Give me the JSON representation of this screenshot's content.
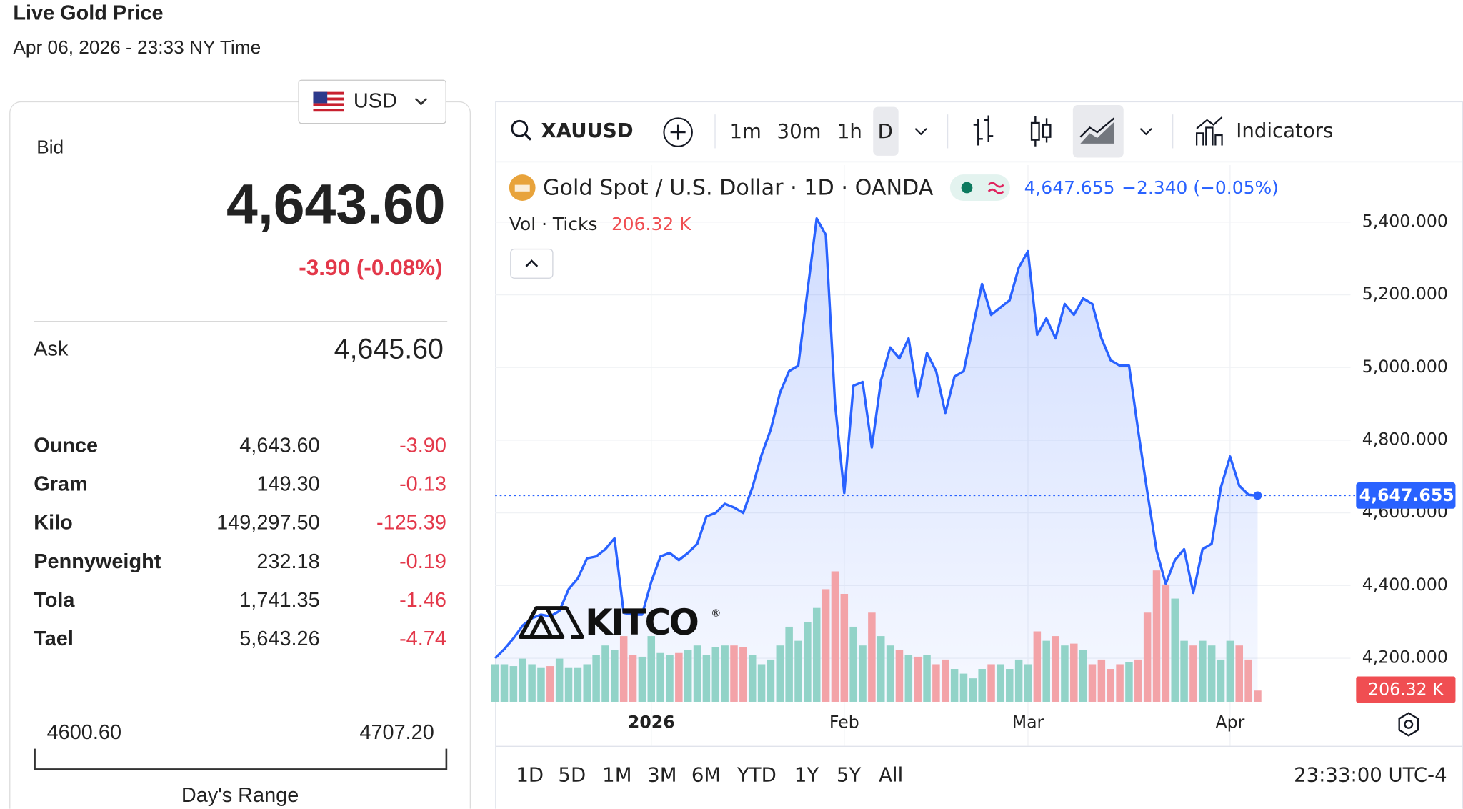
{
  "header": {
    "title": "Live Gold Price",
    "timestamp": "Apr 06, 2026 - 23:33 NY Time"
  },
  "quote": {
    "currency": "USD",
    "bid_label": "Bid",
    "bid": "4,643.60",
    "change": "-3.90 (-0.08%)",
    "ask_label": "Ask",
    "ask": "4,645.60"
  },
  "units": {
    "rows": [
      [
        "Ounce",
        "4,643.60",
        "-3.90"
      ],
      [
        "Gram",
        "149.30",
        "-0.13"
      ],
      [
        "Kilo",
        "149,297.50",
        "-125.39"
      ],
      [
        "Pennyweight",
        "232.18",
        "-0.19"
      ],
      [
        "Tola",
        "1,741.35",
        "-1.46"
      ],
      [
        "Tael",
        "5,643.26",
        "-4.74"
      ]
    ]
  },
  "day_range": {
    "low": "4600.60",
    "high": "4707.20",
    "label": "Day's Range"
  },
  "toolbar": {
    "symbol": "XAUUSD",
    "intervals": [
      "1m",
      "30m",
      "1h",
      "D"
    ],
    "indicators": "Indicators"
  },
  "chart_data": {
    "type": "line",
    "change": "−2.340 (−0.05%)",
    "watermark": {
      "text": "KITCO",
      "mark": "®"
    },
    "categories": [
      null,
      null,
      null,
      null,
      null,
      null,
      null,
      null,
      null,
      null,
      null,
      null,
      null,
      null,
      null,
      null,
      null,
      "2026",
      null,
      null,
      null,
      null,
      null,
      null,
      null,
      null,
      null,
      null,
      null,
      null,
      null,
      null,
      null,
      null,
      null,
      null,
      null,
      null,
      "Feb",
      null,
      null,
      null,
      null,
      null,
      null,
      null,
      null,
      null,
      null,
      null,
      null,
      null,
      null,
      null,
      null,
      null,
      null,
      null,
      "Mar",
      null,
      null,
      null,
      null,
      null,
      null,
      null,
      null,
      null,
      null,
      null,
      null,
      null,
      null,
      null,
      null,
      null,
      null,
      null,
      null,
      null,
      "Apr",
      null,
      null,
      null
    ],
    "series": [
      {
        "name": "Gold Spot / U.S. Dollar · 1D · OANDA",
        "color": "#2962ff",
        "values": [
          4200,
          4225,
          4255,
          4290,
          4310,
          4320,
          4315,
          4330,
          4390,
          4420,
          4475,
          4480,
          4500,
          4530,
          4325,
          4320,
          4320,
          4410,
          4480,
          4490,
          4470,
          4490,
          4515,
          4590,
          4600,
          4625,
          4615,
          4600,
          4670,
          4760,
          4830,
          4930,
          4990,
          5005,
          5210,
          5410,
          5365,
          4900,
          4655,
          4950,
          4960,
          4780,
          4965,
          5055,
          5025,
          5080,
          4920,
          5040,
          4990,
          4875,
          4975,
          4990,
          5110,
          5230,
          5145,
          5165,
          5185,
          5275,
          5320,
          5090,
          5135,
          5080,
          5175,
          5145,
          5190,
          5175,
          5080,
          5020,
          5005,
          5005,
          4825,
          4655,
          4495,
          4405,
          4470,
          4500,
          4380,
          4500,
          4515,
          4670,
          4755,
          4675,
          4650,
          4647.655
        ],
        "value_labels": [
          null,
          null,
          null,
          null,
          null,
          null,
          null,
          null,
          null,
          null,
          null,
          null,
          null,
          null,
          null,
          null,
          null,
          null,
          null,
          null,
          null,
          null,
          null,
          null,
          null,
          null,
          null,
          null,
          null,
          null,
          null,
          null,
          null,
          null,
          null,
          null,
          null,
          null,
          null,
          null,
          null,
          null,
          null,
          null,
          null,
          null,
          null,
          null,
          null,
          null,
          null,
          null,
          null,
          null,
          null,
          null,
          null,
          null,
          null,
          null,
          null,
          null,
          null,
          null,
          null,
          null,
          null,
          null,
          null,
          null,
          null,
          null,
          null,
          null,
          null,
          null,
          null,
          null,
          null,
          null,
          null,
          null,
          null,
          "4,647.655"
        ]
      },
      {
        "name": "Vol · Ticks",
        "up_color": "#92d3c8",
        "down_color": "#f3a3a8",
        "label_color": "#f04e52",
        "values": [
          688,
          688,
          654,
          791,
          688,
          619,
          654,
          791,
          619,
          619,
          688,
          860,
          1032,
          946,
          1204,
          860,
          826,
          1204,
          894,
          860,
          894,
          946,
          1032,
          860,
          998,
          1032,
          1032,
          998,
          860,
          688,
          774,
          1032,
          1376,
          1118,
          1462,
          1720,
          2064,
          2391,
          1978,
          1376,
          1032,
          1634,
          1204,
          1032,
          946,
          860,
          826,
          860,
          688,
          774,
          602,
          516,
          430,
          602,
          688,
          688,
          602,
          774,
          688,
          1290,
          1118,
          1204,
          1032,
          1066,
          946,
          688,
          774,
          602,
          688,
          722,
          774,
          1634,
          2408,
          2150,
          1892,
          1118,
          1032,
          1118,
          1032,
          774,
          1118,
          1032,
          774,
          206.32
        ],
        "value_labels": [
          null,
          null,
          null,
          null,
          null,
          null,
          null,
          null,
          null,
          null,
          null,
          null,
          null,
          null,
          null,
          null,
          null,
          null,
          null,
          null,
          null,
          null,
          null,
          null,
          null,
          null,
          null,
          null,
          null,
          null,
          null,
          null,
          null,
          null,
          null,
          null,
          null,
          null,
          null,
          null,
          null,
          null,
          null,
          null,
          null,
          null,
          null,
          null,
          null,
          null,
          null,
          null,
          null,
          null,
          null,
          null,
          null,
          null,
          null,
          null,
          null,
          null,
          null,
          null,
          null,
          null,
          null,
          null,
          null,
          null,
          null,
          null,
          null,
          null,
          null,
          null,
          null,
          null,
          null,
          null,
          null,
          null,
          null,
          "206.32 K"
        ]
      }
    ],
    "ylim": [
      4075,
      5557
    ],
    "yticks": [
      {
        "value": 4200,
        "label": "4,200.000"
      },
      {
        "value": 4400,
        "label": "4,400.000"
      },
      {
        "value": 4600,
        "label": "4,600.000"
      },
      {
        "value": 4800,
        "label": "4,800.000"
      },
      {
        "value": 5000,
        "label": "5,000.000"
      },
      {
        "value": 5200,
        "label": "5,200.000"
      },
      {
        "value": 5400,
        "label": "5,400.000"
      }
    ],
    "grid": true
  },
  "footer": {
    "ranges": [
      "1D",
      "5D",
      "1M",
      "3M",
      "6M",
      "YTD",
      "1Y",
      "5Y",
      "All"
    ],
    "time": "23:33:00 UTC-4"
  }
}
